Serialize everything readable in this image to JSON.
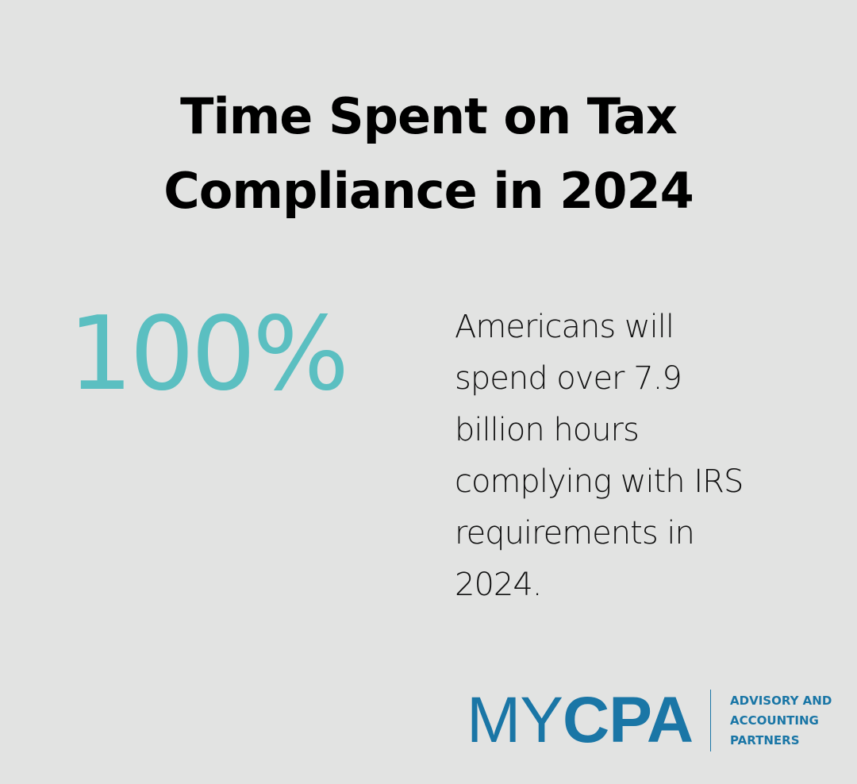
{
  "title": {
    "line1": "Time Spent on Tax",
    "line2": "Compliance in 2024"
  },
  "stat": {
    "value": "100%"
  },
  "description": {
    "lines": [
      "Americans will",
      "spend over 7.9",
      "billion hours",
      "complying with IRS",
      "requirements in",
      "2024."
    ]
  },
  "logo": {
    "wordmark_light": "MY",
    "wordmark_bold": "CPA",
    "tagline": [
      "ADVISORY AND",
      "ACCOUNTING",
      "PARTNERS"
    ]
  },
  "colors": {
    "background": "#e2e3e2",
    "stat": "#5bbfc1",
    "brand": "#1a76a6",
    "text": "#000000"
  }
}
